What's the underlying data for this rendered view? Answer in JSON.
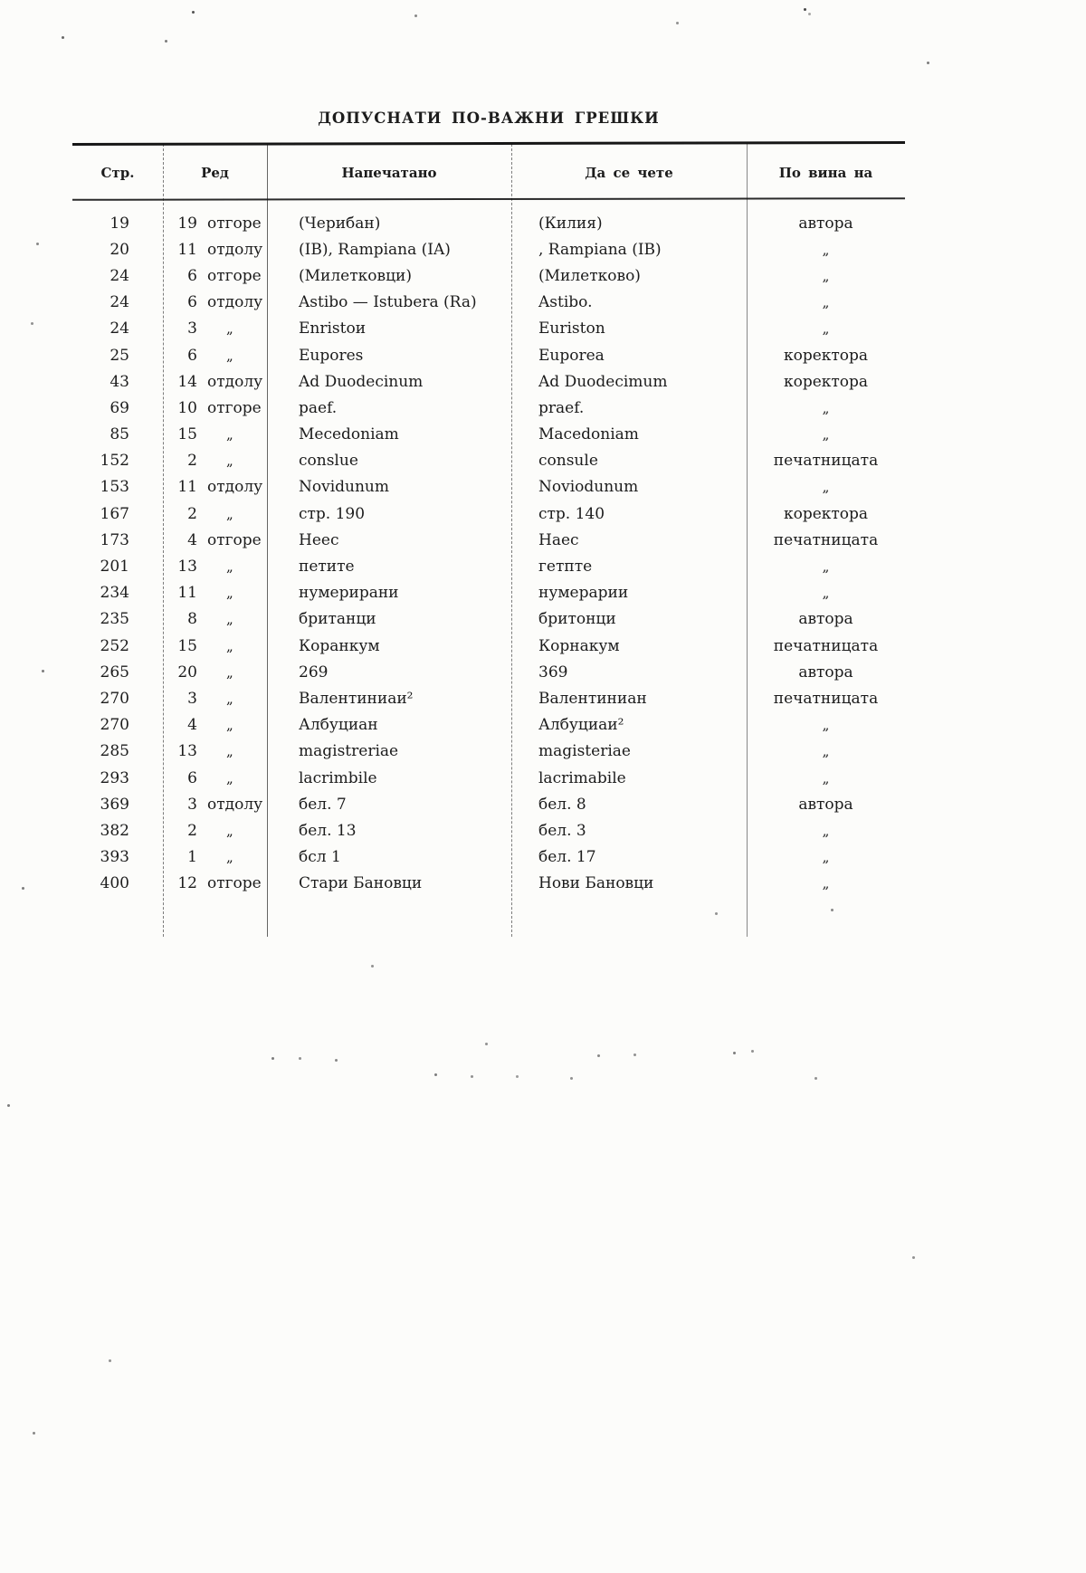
{
  "page": {
    "title": "ДОПУСНАТИ ПО-ВАЖНИ ГРЕШКИ"
  },
  "table": {
    "columns": {
      "page": "Стр.",
      "line": "Ред",
      "printed": "Напечатано",
      "correct": "Да се чете",
      "fault": "По вина на"
    },
    "ditto_mark": "„",
    "rows": [
      {
        "page": "19",
        "line_no": "19",
        "line_pos": "отгоре",
        "printed": "(Черибан)",
        "correct": "(Килия)",
        "fault": "автора"
      },
      {
        "page": "20",
        "line_no": "11",
        "line_pos": "отдолу",
        "printed": "(IB), Rampiana (IA)",
        "correct": ", Rampiana (IB)",
        "fault": "„"
      },
      {
        "page": "24",
        "line_no": "6",
        "line_pos": "отгоре",
        "printed": "(Милетковци)",
        "correct": "(Милетково)",
        "fault": "„"
      },
      {
        "page": "24",
        "line_no": "6",
        "line_pos": "отдолу",
        "printed": "Astibo — Istubera (Ra)",
        "correct": "Astibo.",
        "fault": "„"
      },
      {
        "page": "24",
        "line_no": "3",
        "line_pos": "„",
        "printed": "Enristoи",
        "correct": "Euriston",
        "fault": "„"
      },
      {
        "page": "25",
        "line_no": "6",
        "line_pos": "„",
        "printed": "Eupores",
        "correct": "Euporea",
        "fault": "коректора"
      },
      {
        "page": "43",
        "line_no": "14",
        "line_pos": "отдолу",
        "printed": "Ad Duodecinum",
        "correct": "Ad Duodecimum",
        "fault": "коректора"
      },
      {
        "page": "69",
        "line_no": "10",
        "line_pos": "отгоре",
        "printed": "paef.",
        "correct": "praef.",
        "fault": "„"
      },
      {
        "page": "85",
        "line_no": "15",
        "line_pos": "„",
        "printed": "Mecedoniam",
        "correct": "Macedoniam",
        "fault": "„"
      },
      {
        "page": "152",
        "line_no": "2",
        "line_pos": "„",
        "printed": "conslue",
        "correct": "consule",
        "fault": "печатницата"
      },
      {
        "page": "153",
        "line_no": "11",
        "line_pos": "отдолу",
        "printed": "Novidunum",
        "correct": "Noviodunum",
        "fault": "„"
      },
      {
        "page": "167",
        "line_no": "2",
        "line_pos": "„",
        "printed": "стр. 190",
        "correct": "стр. 140",
        "fault": "коректора"
      },
      {
        "page": "173",
        "line_no": "4",
        "line_pos": "отгоре",
        "printed": "Heec",
        "correct": "Haec",
        "fault": "печатницата"
      },
      {
        "page": "201",
        "line_no": "13",
        "line_pos": "„",
        "printed": "петите",
        "correct": "гетпте",
        "fault": "„"
      },
      {
        "page": "234",
        "line_no": "11",
        "line_pos": "„",
        "printed": "нумерирани",
        "correct": "нумерарии",
        "fault": "„"
      },
      {
        "page": "235",
        "line_no": "8",
        "line_pos": "„",
        "printed": "британци",
        "correct": "бритонци",
        "fault": "автора"
      },
      {
        "page": "252",
        "line_no": "15",
        "line_pos": "„",
        "printed": "Коранкум",
        "correct": "Корнакум",
        "fault": "печатницата"
      },
      {
        "page": "265",
        "line_no": "20",
        "line_pos": "„",
        "printed": "269",
        "correct": "369",
        "fault": "автора"
      },
      {
        "page": "270",
        "line_no": "3",
        "line_pos": "„",
        "printed": "Валентиниаи²",
        "correct": "Валентиниан",
        "fault": "печатницата"
      },
      {
        "page": "270",
        "line_no": "4",
        "line_pos": "„",
        "printed": "Албуциан",
        "correct": "Албуциаи²",
        "fault": "„"
      },
      {
        "page": "285",
        "line_no": "13",
        "line_pos": "„",
        "printed": "magistreriae",
        "correct": "magisteriae",
        "fault": "„"
      },
      {
        "page": "293",
        "line_no": "6",
        "line_pos": "„",
        "printed": "lacrimbile",
        "correct": "lacrimabile",
        "fault": "„"
      },
      {
        "page": "369",
        "line_no": "3",
        "line_pos": "отдолу",
        "printed": "бел. 7",
        "correct": "бел. 8",
        "fault": "автора"
      },
      {
        "page": "382",
        "line_no": "2",
        "line_pos": "„",
        "printed": "бел. 13",
        "correct": "бел. 3",
        "fault": "„"
      },
      {
        "page": "393",
        "line_no": "1",
        "line_pos": "„",
        "printed": "бсл 1",
        "correct": "бел. 17",
        "fault": "„"
      },
      {
        "page": "400",
        "line_no": "12",
        "line_pos": "отгоре",
        "printed": "Стари Бановци",
        "correct": "Нови Бановци",
        "fault": "„"
      }
    ]
  }
}
